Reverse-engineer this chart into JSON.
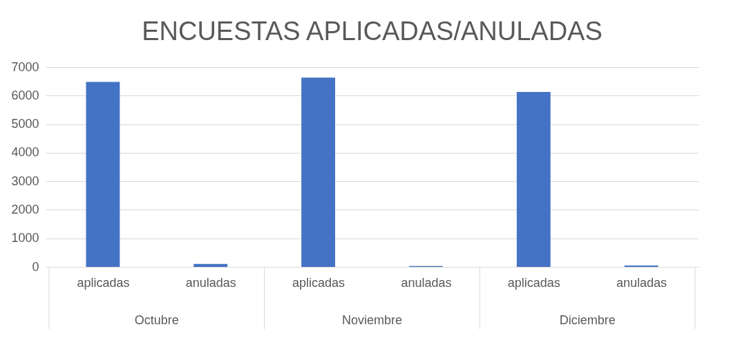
{
  "chart_data": {
    "type": "bar",
    "title": "ENCUESTAS APLICADAS/ANULADAS",
    "categories": [
      "aplicadas",
      "anuladas",
      "aplicadas",
      "anuladas",
      "aplicadas",
      "anuladas"
    ],
    "values": [
      6480,
      100,
      6630,
      30,
      6130,
      50
    ],
    "color": "#4472c4",
    "ylim": [
      0,
      7000
    ],
    "yticks": [
      0,
      1000,
      2000,
      3000,
      4000,
      5000,
      6000,
      7000
    ],
    "grid": "y",
    "annotations": [
      "Octubre",
      "Noviembre",
      "Diciembre"
    ]
  }
}
